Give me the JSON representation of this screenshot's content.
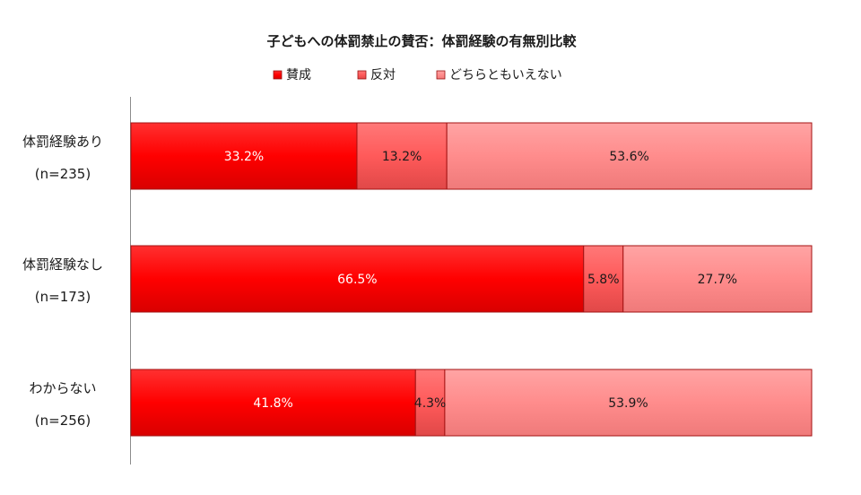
{
  "chart_data": {
    "type": "bar",
    "orientation": "horizontal",
    "stacked": true,
    "percent": true,
    "title": "子どもへの体罰禁止の賛否：体罰経験の有無別比較",
    "xlim": [
      0,
      100
    ],
    "legend_position": "top",
    "grid": false,
    "categories": [
      {
        "name": "体罰経験あり",
        "n": "(n=235)"
      },
      {
        "name": "体罰経験なし",
        "n": "(n=173)"
      },
      {
        "name": "わからない",
        "n": "(n=256)"
      }
    ],
    "series": [
      {
        "name": "賛成",
        "color": "#ff0000",
        "values": [
          33.2,
          66.5,
          41.8
        ]
      },
      {
        "name": "反対",
        "color": "#ff5a5a",
        "values": [
          13.2,
          5.8,
          4.3
        ]
      },
      {
        "name": "どちらともいえない",
        "color": "#ff8c8c",
        "values": [
          53.6,
          27.7,
          53.9
        ]
      }
    ],
    "value_suffix": "%"
  }
}
